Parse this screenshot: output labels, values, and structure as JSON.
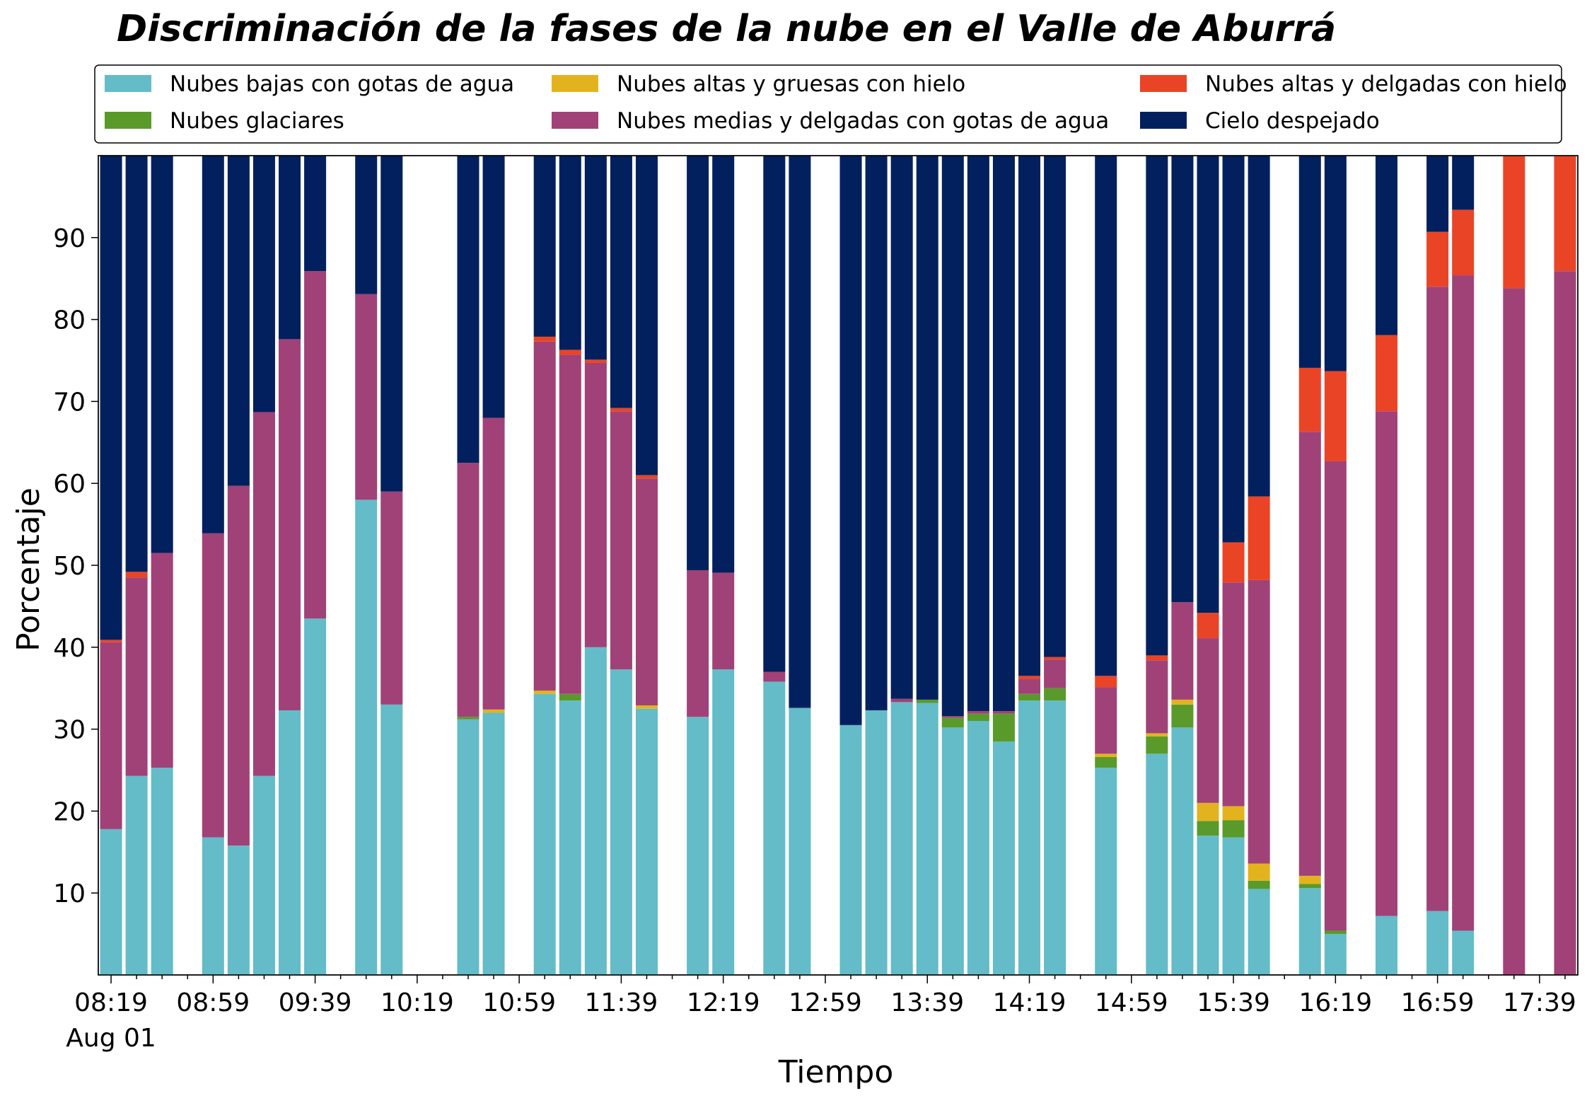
{
  "chart_data": {
    "type": "bar",
    "stacked": true,
    "title": "Discriminación de la fases de la nube en el Valle de Aburrá",
    "xlabel": "Tiempo",
    "ylabel": "Porcentaje",
    "ylim": [
      0,
      100
    ],
    "yticks": [
      10,
      20,
      30,
      40,
      50,
      60,
      70,
      80,
      90
    ],
    "grid": false,
    "legend_position": "top",
    "x_tick_labels": [
      "08:19",
      "08:59",
      "09:39",
      "10:19",
      "10:59",
      "11:39",
      "12:19",
      "12:59",
      "13:39",
      "14:19",
      "14:59",
      "15:39",
      "16:19",
      "16:59",
      "17:39"
    ],
    "x_date_label": "Aug 01",
    "x": [
      "08:19",
      "08:29",
      "08:39",
      "08:49",
      "08:59",
      "09:09",
      "09:19",
      "09:29",
      "09:39",
      "09:49",
      "09:59",
      "10:09",
      "10:19",
      "10:29",
      "10:39",
      "10:49",
      "10:59",
      "11:09",
      "11:19",
      "11:29",
      "11:39",
      "11:49",
      "11:59",
      "12:09",
      "12:19",
      "12:29",
      "12:39",
      "12:49",
      "12:59",
      "13:09",
      "13:19",
      "13:29",
      "13:39",
      "13:49",
      "13:59",
      "14:09",
      "14:19",
      "14:29",
      "14:39",
      "14:49",
      "14:59",
      "15:09",
      "15:19",
      "15:29",
      "15:39",
      "15:49",
      "15:59",
      "16:09",
      "16:19",
      "16:29",
      "16:39",
      "16:49",
      "16:59",
      "17:09",
      "17:19",
      "17:29",
      "17:39",
      "17:49"
    ],
    "series": [
      {
        "name": "Nubes bajas con gotas de agua",
        "color": "#63BCC8",
        "values": [
          17.8,
          24.3,
          25.3,
          null,
          16.8,
          15.8,
          24.3,
          32.3,
          43.5,
          null,
          58.0,
          33.0,
          null,
          null,
          31.2,
          32.0,
          null,
          34.3,
          33.5,
          40.0,
          37.3,
          32.5,
          null,
          31.5,
          37.3,
          null,
          35.8,
          32.6,
          null,
          30.5,
          32.3,
          33.3,
          33.2,
          30.2,
          31.0,
          28.5,
          33.5,
          33.5,
          null,
          25.3,
          null,
          27.0,
          30.2,
          17.0,
          16.8,
          10.5,
          null,
          10.6,
          5.0,
          null,
          7.2,
          null,
          7.8,
          5.4,
          null,
          0,
          null,
          0
        ]
      },
      {
        "name": "Nubes glaciares",
        "color": "#5A9A2A",
        "values": [
          0,
          0,
          0,
          null,
          0,
          0,
          0,
          0,
          0,
          null,
          0,
          0,
          null,
          null,
          0.3,
          0,
          null,
          0,
          0.8,
          0,
          0,
          0,
          null,
          0,
          0,
          null,
          0,
          0,
          null,
          0,
          0,
          0,
          0.4,
          1.2,
          0.9,
          3.4,
          0.8,
          1.5,
          null,
          1.3,
          null,
          2.1,
          2.8,
          1.8,
          2.1,
          1.0,
          null,
          0.5,
          0.4,
          null,
          0,
          null,
          0,
          0,
          null,
          0,
          null,
          0
        ]
      },
      {
        "name": "Nubes altas y gruesas con hielo",
        "color": "#E3B31F",
        "values": [
          0,
          0,
          0,
          null,
          0,
          0,
          0,
          0,
          0,
          null,
          0,
          0,
          null,
          null,
          0,
          0.4,
          null,
          0.4,
          0,
          0,
          0,
          0.4,
          null,
          0,
          0,
          null,
          0,
          0,
          null,
          0,
          0,
          0,
          0,
          0,
          0,
          0,
          0,
          0,
          null,
          0.4,
          null,
          0.4,
          0.6,
          2.2,
          1.7,
          2.1,
          null,
          1.0,
          0,
          null,
          0,
          null,
          0,
          0,
          null,
          0,
          null,
          0
        ]
      },
      {
        "name": "Nubes medias y delgadas con gotas de agua",
        "color": "#A04277",
        "values": [
          22.8,
          24.2,
          26.2,
          null,
          37.1,
          43.9,
          44.4,
          45.3,
          42.4,
          null,
          25.1,
          26.0,
          null,
          null,
          31.0,
          35.6,
          null,
          42.6,
          41.4,
          34.7,
          31.5,
          27.7,
          null,
          17.9,
          11.8,
          null,
          1.2,
          0,
          null,
          0,
          0,
          0.4,
          0,
          0.2,
          0.3,
          0.3,
          1.8,
          3.5,
          null,
          8.1,
          null,
          8.9,
          11.9,
          20.1,
          27.3,
          34.6,
          null,
          54.2,
          57.3,
          null,
          61.6,
          null,
          76.2,
          80.0,
          null,
          83.8,
          null,
          85.9
        ]
      },
      {
        "name": "Nubes altas y delgadas con hielo",
        "color": "#EA4426",
        "values": [
          0.3,
          0.7,
          0,
          null,
          0,
          0,
          0,
          0,
          0,
          null,
          0,
          0,
          null,
          null,
          0,
          0,
          null,
          0.6,
          0.6,
          0.4,
          0.4,
          0.4,
          null,
          0,
          0,
          null,
          0,
          0,
          null,
          0,
          0,
          0,
          0,
          0,
          0,
          0,
          0.4,
          0.3,
          null,
          1.4,
          null,
          0.6,
          0,
          3.1,
          4.9,
          10.2,
          null,
          7.8,
          11.0,
          null,
          9.3,
          null,
          6.7,
          8.0,
          null,
          16.2,
          null,
          14.1
        ]
      },
      {
        "name": "Cielo despejado",
        "color": "#03205E",
        "values": [
          59.1,
          50.8,
          48.5,
          null,
          46.1,
          40.3,
          31.3,
          22.4,
          14.1,
          null,
          16.9,
          41.0,
          null,
          null,
          37.5,
          32.0,
          null,
          22.1,
          23.7,
          24.9,
          30.8,
          39.0,
          null,
          50.6,
          50.9,
          null,
          63.0,
          67.4,
          null,
          69.5,
          67.7,
          66.3,
          66.4,
          68.4,
          67.8,
          67.8,
          63.5,
          61.2,
          null,
          63.5,
          null,
          61.0,
          54.9,
          55.8,
          47.2,
          41.6,
          null,
          25.9,
          26.3,
          null,
          21.9,
          null,
          9.3,
          6.6,
          null,
          0,
          null,
          0
        ]
      }
    ]
  }
}
